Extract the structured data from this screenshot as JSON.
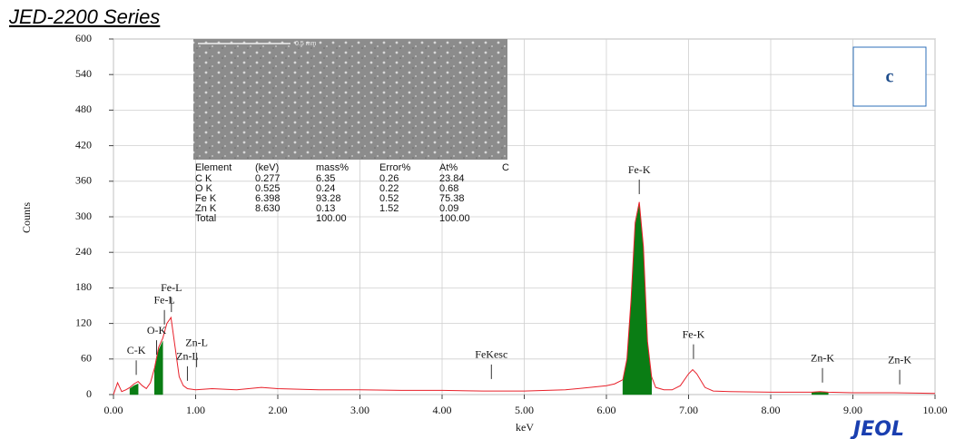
{
  "chart_data": {
    "type": "spectrum",
    "title": "JED-2200 Series",
    "panel_label": "c",
    "logo": "JEOL",
    "x_label": "keV",
    "y_label": "Counts",
    "image_scale": "0.5 mm",
    "xlim": [
      0,
      10
    ],
    "xticks": [
      {
        "value": 0,
        "label": "0.00"
      },
      {
        "value": 1,
        "label": "1.00"
      },
      {
        "value": 2,
        "label": "2.00"
      },
      {
        "value": 3,
        "label": "3.00"
      },
      {
        "value": 4,
        "label": "4.00"
      },
      {
        "value": 5,
        "label": "5.00"
      },
      {
        "value": 6,
        "label": "6.00"
      },
      {
        "value": 7,
        "label": "7.00"
      },
      {
        "value": 8,
        "label": "8.00"
      },
      {
        "value": 9,
        "label": "9.00"
      },
      {
        "value": 10,
        "label": "10.00"
      }
    ],
    "ylim": [
      0,
      600
    ],
    "yticks": [
      0,
      60,
      120,
      180,
      240,
      300,
      360,
      420,
      480,
      540,
      600
    ],
    "grid": true,
    "x": [
      0,
      0.05,
      0.1,
      0.15,
      0.2,
      0.25,
      0.3,
      0.35,
      0.4,
      0.45,
      0.5,
      0.55,
      0.6,
      0.65,
      0.7,
      0.75,
      0.8,
      0.85,
      0.9,
      1.0,
      1.2,
      1.5,
      1.8,
      2.0,
      2.5,
      3.0,
      3.5,
      4.0,
      4.5,
      5.0,
      5.5,
      5.8,
      6.0,
      6.1,
      6.2,
      6.25,
      6.3,
      6.35,
      6.4,
      6.45,
      6.5,
      6.55,
      6.6,
      6.7,
      6.8,
      6.9,
      7.0,
      7.05,
      7.1,
      7.2,
      7.3,
      7.5,
      8.0,
      8.5,
      8.6,
      8.7,
      9.0,
      9.5,
      10.0
    ],
    "series": [
      {
        "color": "#e8202a",
        "style": "line",
        "values": [
          0,
          20,
          5,
          8,
          12,
          18,
          22,
          15,
          10,
          20,
          45,
          80,
          95,
          120,
          130,
          80,
          30,
          15,
          10,
          8,
          10,
          8,
          12,
          10,
          8,
          8,
          7,
          7,
          6,
          6,
          8,
          12,
          15,
          18,
          25,
          60,
          160,
          290,
          325,
          250,
          90,
          30,
          12,
          8,
          8,
          15,
          35,
          42,
          35,
          12,
          6,
          5,
          4,
          4,
          5,
          4,
          3,
          3,
          2
        ]
      },
      {
        "color": "#0a7d14",
        "style": "area",
        "values": [
          null,
          null,
          null,
          null,
          10,
          15,
          18,
          null,
          null,
          null,
          40,
          75,
          90,
          null,
          null,
          null,
          null,
          null,
          null,
          null,
          null,
          null,
          null,
          null,
          null,
          null,
          null,
          null,
          null,
          null,
          null,
          null,
          null,
          null,
          22,
          58,
          155,
          285,
          320,
          245,
          85,
          25,
          null,
          null,
          null,
          null,
          null,
          null,
          null,
          null,
          null,
          null,
          null,
          3,
          4,
          3,
          null,
          null,
          null
        ]
      }
    ],
    "annotations": [
      {
        "text": "C-K",
        "x": 0.277,
        "y": 73
      },
      {
        "text": "O-K",
        "x": 0.525,
        "y": 107
      },
      {
        "text": "Fe-L",
        "x": 0.62,
        "y": 158
      },
      {
        "text": "Fe-L",
        "x": 0.705,
        "y": 179
      },
      {
        "text": "Zn-L",
        "x": 0.9,
        "y": 63
      },
      {
        "text": "Zn-L",
        "x": 1.012,
        "y": 86
      },
      {
        "text": "FeKesc",
        "x": 4.6,
        "y": 66
      },
      {
        "text": "Fe-K",
        "x": 6.4,
        "y": 378
      },
      {
        "text": "Fe-K",
        "x": 7.06,
        "y": 100
      },
      {
        "text": "Zn-K",
        "x": 8.63,
        "y": 60
      },
      {
        "text": "Zn-K",
        "x": 9.57,
        "y": 57
      }
    ],
    "inset_table": {
      "header": [
        "Element",
        "(keV)",
        "mass%",
        "Error%",
        "At%",
        "C"
      ],
      "rows": [
        [
          "C  K",
          "0.277",
          "6.35",
          "0.26",
          "23.84"
        ],
        [
          "O  K",
          "0.525",
          "0.24",
          "0.22",
          "0.68"
        ],
        [
          "Fe K",
          "6.398",
          "93.28",
          "0.52",
          "75.38"
        ],
        [
          "Zn K",
          "8.630",
          "0.13",
          "1.52",
          "0.09"
        ],
        [
          "Total",
          "",
          "100.00",
          "",
          "100.00"
        ]
      ]
    }
  }
}
